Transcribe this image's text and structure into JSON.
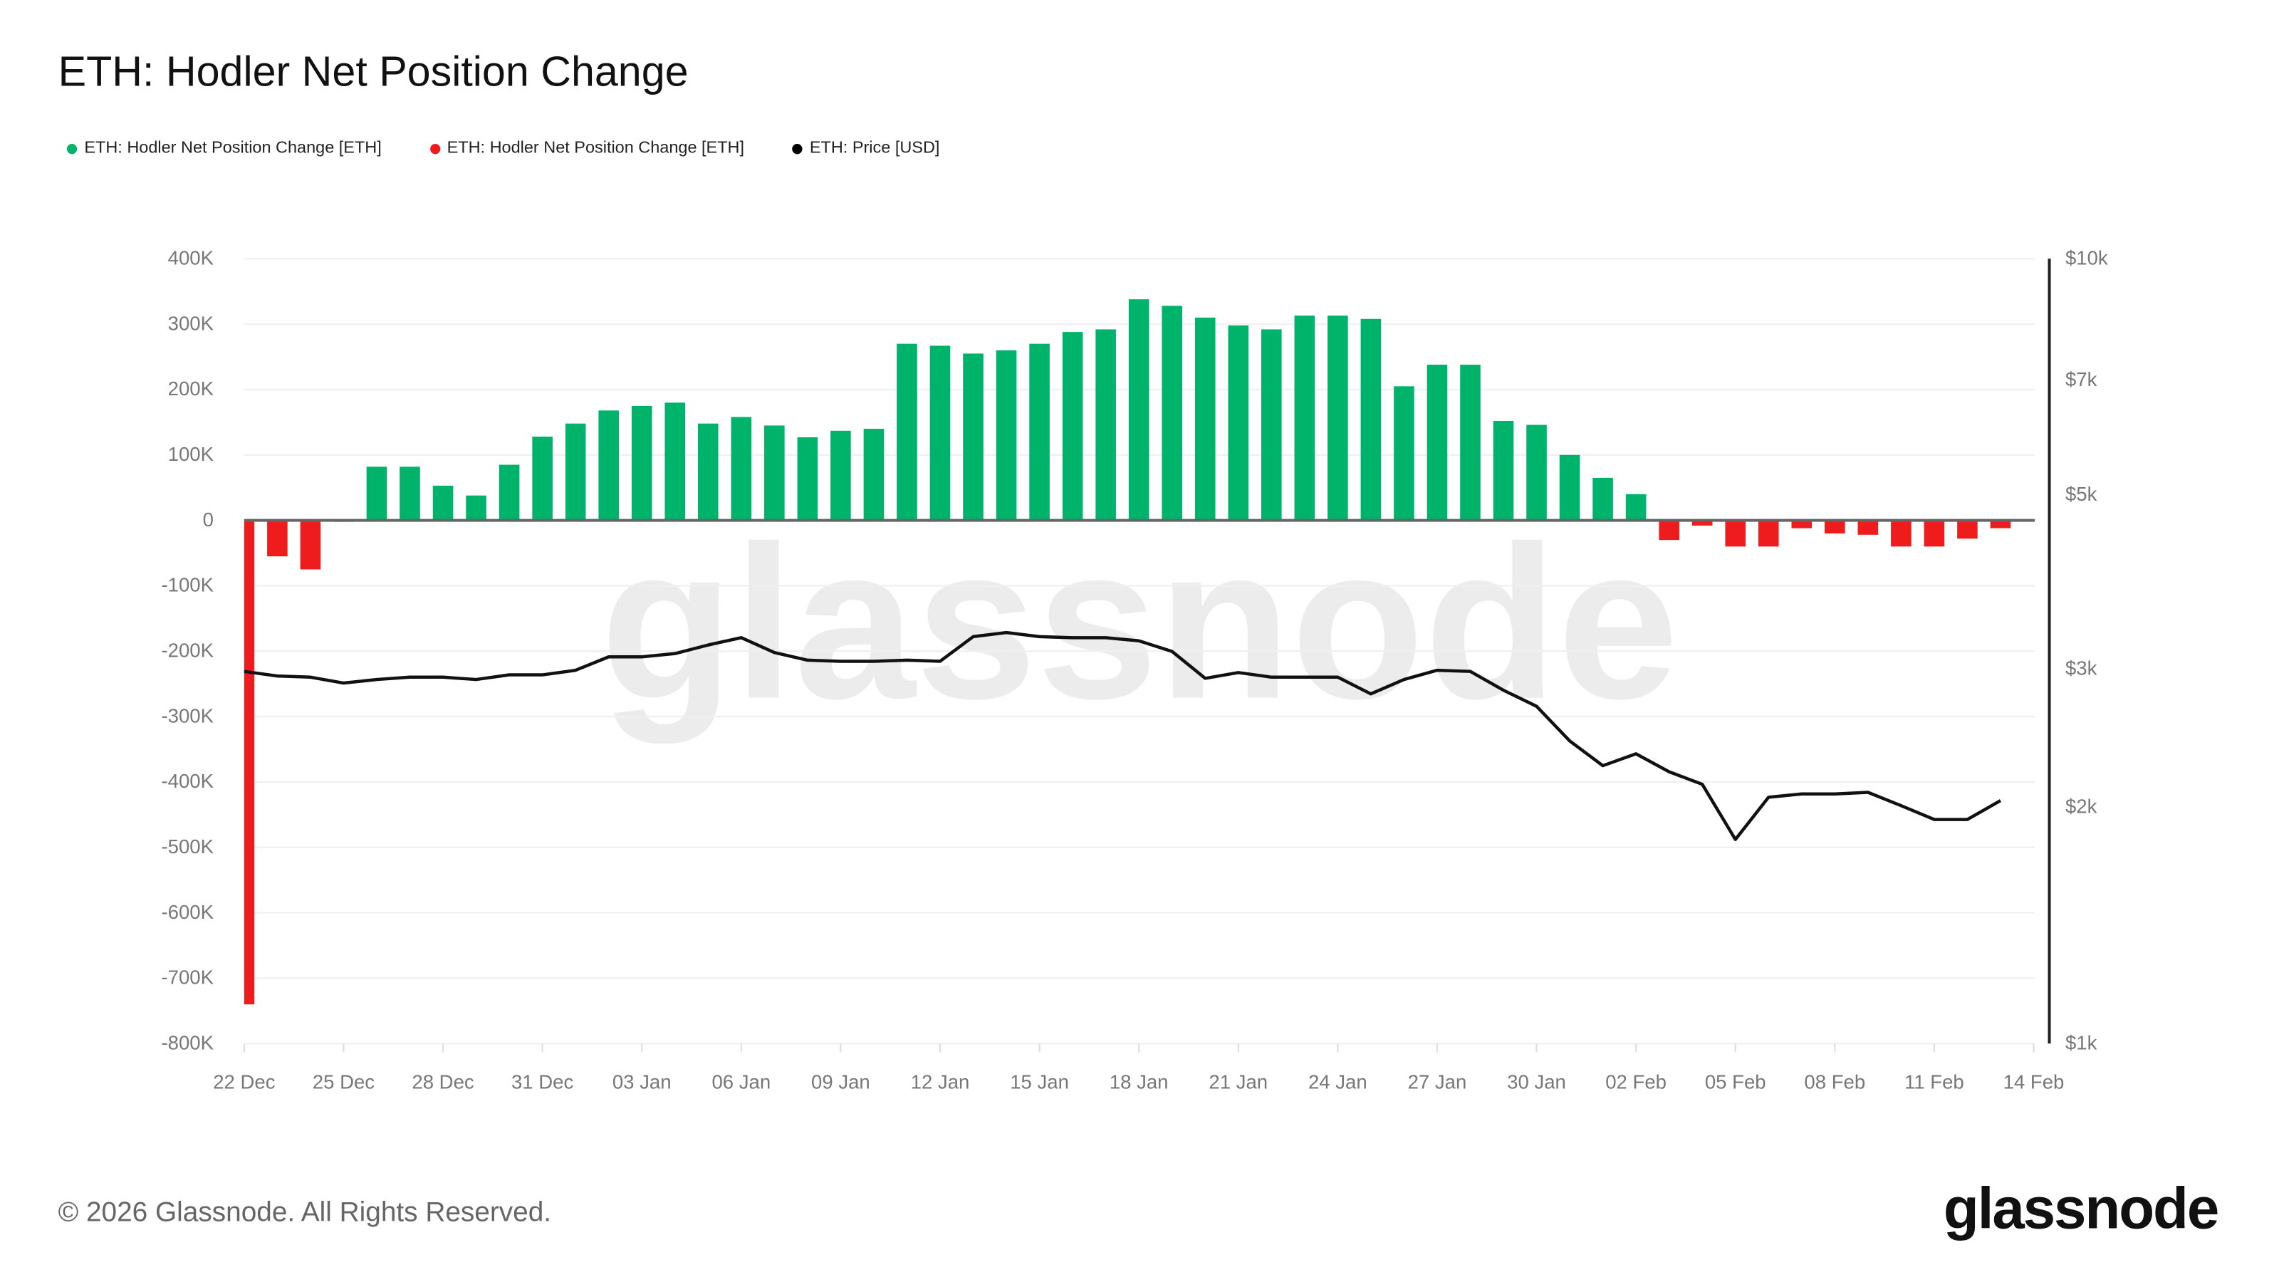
{
  "title": "ETH: Hodler Net Position Change",
  "legend": [
    {
      "label": "ETH: Hodler Net Position Change [ETH]",
      "color": "#00b36b"
    },
    {
      "label": "ETH: Hodler Net Position Change [ETH]",
      "color": "#ee1c1c"
    },
    {
      "label": "ETH: Price [USD]",
      "color": "#000000"
    }
  ],
  "footer": "© 2026 Glassnode. All Rights Reserved.",
  "logo": "glassnode",
  "watermark": "glassnode",
  "chart_data": {
    "type": "bar+line",
    "title": "ETH: Hodler Net Position Change",
    "x_start": "22 Dec",
    "x_tick_labels": [
      "22 Dec",
      "25 Dec",
      "28 Dec",
      "31 Dec",
      "03 Jan",
      "06 Jan",
      "09 Jan",
      "12 Jan",
      "15 Jan",
      "18 Jan",
      "21 Jan",
      "24 Jan",
      "27 Jan",
      "30 Jan",
      "02 Feb",
      "05 Feb",
      "08 Feb",
      "11 Feb",
      "14 Feb"
    ],
    "y_left": {
      "ticks": [
        "400K",
        "300K",
        "200K",
        "100K",
        "0",
        "-100K",
        "-200K",
        "-300K",
        "-400K",
        "-500K",
        "-600K",
        "-700K",
        "-800K"
      ],
      "range": [
        -800000,
        400000
      ]
    },
    "y_right": {
      "ticks": [
        "$10k",
        "$7k",
        "$5k",
        "$3k",
        "$2k",
        "$1k"
      ],
      "tick_values": [
        10000,
        7000,
        5000,
        3000,
        2000,
        1000
      ],
      "scale": "log",
      "range": [
        1000,
        10000
      ]
    },
    "grid": true,
    "positive_color": "#00b36b",
    "negative_color": "#ee1c1c",
    "line_color": "#111111",
    "dates": [
      "22 Dec",
      "23 Dec",
      "24 Dec",
      "25 Dec",
      "26 Dec",
      "27 Dec",
      "28 Dec",
      "29 Dec",
      "30 Dec",
      "31 Dec",
      "01 Jan",
      "02 Jan",
      "03 Jan",
      "04 Jan",
      "05 Jan",
      "06 Jan",
      "07 Jan",
      "08 Jan",
      "09 Jan",
      "10 Jan",
      "11 Jan",
      "12 Jan",
      "13 Jan",
      "14 Jan",
      "15 Jan",
      "16 Jan",
      "17 Jan",
      "18 Jan",
      "19 Jan",
      "20 Jan",
      "21 Jan",
      "22 Jan",
      "23 Jan",
      "24 Jan",
      "25 Jan",
      "26 Jan",
      "27 Jan",
      "28 Jan",
      "29 Jan",
      "30 Jan",
      "31 Jan",
      "01 Feb",
      "02 Feb",
      "03 Feb",
      "04 Feb",
      "05 Feb",
      "06 Feb",
      "07 Feb",
      "08 Feb",
      "09 Feb",
      "10 Feb",
      "11 Feb",
      "12 Feb",
      "13 Feb"
    ],
    "series": [
      {
        "name": "ETH: Hodler Net Position Change [ETH]",
        "type": "bar",
        "axis": "left",
        "values": [
          -740000,
          -55000,
          -75000,
          -2000,
          82000,
          82000,
          53000,
          38000,
          85000,
          128000,
          148000,
          168000,
          175000,
          180000,
          148000,
          158000,
          145000,
          127000,
          137000,
          140000,
          270000,
          267000,
          255000,
          260000,
          270000,
          288000,
          292000,
          338000,
          328000,
          310000,
          298000,
          292000,
          313000,
          313000,
          308000,
          205000,
          238000,
          238000,
          152000,
          146000,
          100000,
          65000,
          40000,
          -30000,
          -8000,
          -40000,
          -40000,
          -12000,
          -20000,
          -22000,
          -40000,
          -40000,
          -28000,
          -12000
        ]
      },
      {
        "name": "ETH: Price [USD]",
        "type": "line",
        "axis": "right",
        "values": [
          2980,
          2940,
          2930,
          2880,
          2910,
          2930,
          2930,
          2910,
          2950,
          2950,
          2990,
          3110,
          3110,
          3140,
          3220,
          3290,
          3150,
          3080,
          3070,
          3070,
          3080,
          3070,
          3300,
          3340,
          3300,
          3290,
          3290,
          3260,
          3160,
          2920,
          2970,
          2930,
          2930,
          2930,
          2790,
          2910,
          2990,
          2980,
          2820,
          2690,
          2430,
          2260,
          2340,
          2220,
          2140,
          1820,
          2060,
          2080,
          2080,
          2090,
          2010,
          1930,
          1930,
          2040
        ]
      }
    ]
  }
}
